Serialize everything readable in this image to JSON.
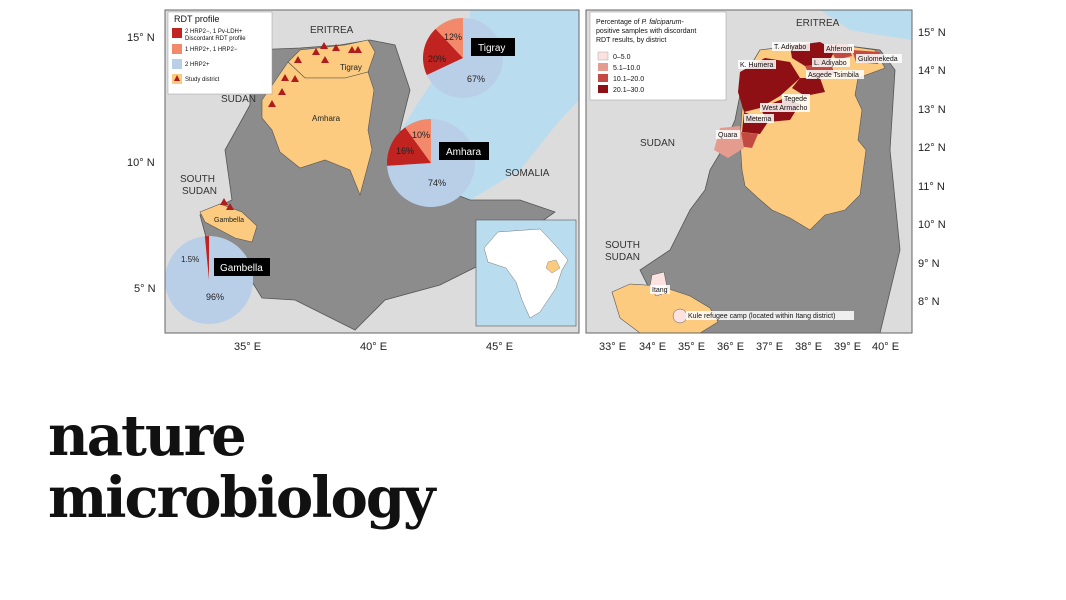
{
  "left_map": {
    "legend": {
      "title": "RDT profile",
      "item1_line1": "2 HRP2−, 1 Pv-LDH+",
      "item1_line2": "Discordant RDT profile",
      "item2": "1 HRP2+, 1 HRP2−",
      "item3": "2 HRP2+",
      "item4": "Study district"
    },
    "countries": {
      "eritrea": "ERITREA",
      "sudan": "SUDAN",
      "south_sudan_1": "SOUTH",
      "south_sudan_2": "SUDAN",
      "somalia": "SOMALIA"
    },
    "regions": {
      "tigray": "Tigray",
      "amhara": "Amhara",
      "gambella": "Gambella"
    },
    "lat_ticks": [
      "15° N",
      "10° N",
      "5° N"
    ],
    "lon_ticks": [
      "35° E",
      "40° E",
      "45° E"
    ],
    "pies": {
      "tigray": {
        "label": "Tigray",
        "discordant": "20%",
        "mixed": "12%",
        "positive": "67%"
      },
      "amhara": {
        "label": "Amhara",
        "discordant": "16%",
        "mixed": "10%",
        "positive": "74%"
      },
      "gambella": {
        "label": "Gambella",
        "mixed": "1.5%",
        "positive": "96%"
      }
    }
  },
  "right_map": {
    "legend": {
      "title_line1_pre": "Percentage of ",
      "title_line1_italic": "P. falciparum",
      "title_line1_post": "-",
      "title_line2": "positive samples with discordant",
      "title_line3": "RDT results, by district",
      "items": [
        "0–5.0",
        "5.1–10.0",
        "10.1–20.0",
        "20.1–30.0"
      ]
    },
    "countries": {
      "eritrea": "ERITREA",
      "sudan": "SUDAN",
      "south_sudan_1": "SOUTH",
      "south_sudan_2": "SUDAN"
    },
    "districts": {
      "t_adiyabo": "T. Adiyabo",
      "ahferom": "Ahferom",
      "gulomekeda": "Gulomekeda",
      "k_humera": "K. Humera",
      "l_adiyabo": "L. Adiyabo",
      "asgede_tsimbila": "Asgede Tsimbila",
      "tegede": "Tegede",
      "west_armacho": "West Armacho",
      "metema": "Metema",
      "quara": "Quara",
      "itang": "Itang",
      "kule": "Kule refugee camp (located within Itang district)"
    },
    "lat_ticks": [
      "15° N",
      "14° N",
      "13° N",
      "12° N",
      "11° N",
      "10° N",
      "9° N",
      "8° N"
    ],
    "lon_ticks": [
      "33° E",
      "34° E",
      "35° E",
      "36° E",
      "37° E",
      "38° E",
      "39° E",
      "40° E"
    ]
  },
  "colors": {
    "ocean": "#b9dcee",
    "land": "#dcdcdc",
    "ethiopia": "#8c8c8c",
    "study": "#fccb7f",
    "discordant": "#c02320",
    "mixed": "#f2896b",
    "positive": "#b9cfe8",
    "c0_5": "#fbe2e0",
    "c5_10": "#e59b8e",
    "c10_20": "#c24a42",
    "c20_30": "#8e0f14"
  },
  "brand": {
    "line1": "nature",
    "line2": "microbiology"
  }
}
